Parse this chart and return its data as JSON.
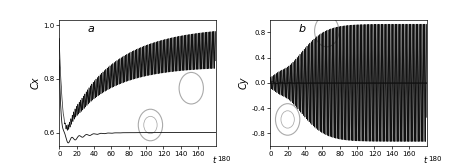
{
  "title_a": "a",
  "title_b": "b",
  "ylabel_a": "Cx",
  "ylabel_b": "Cy",
  "xlabel": "t",
  "xlim": [
    0,
    180
  ],
  "ylim_a": [
    0.55,
    1.02
  ],
  "ylim_b": [
    -1.0,
    1.0
  ],
  "xticks": [
    0,
    20,
    40,
    60,
    80,
    100,
    120,
    140,
    160
  ],
  "yticks_a": [
    0.6,
    0.8,
    1.0
  ],
  "yticks_b": [
    -0.8,
    -0.4,
    0.0,
    0.4,
    0.8
  ],
  "line_color": "#111111",
  "freq": 0.62,
  "n_points": 8000,
  "mean_a_base": 0.6,
  "mean_a_rise": 0.32,
  "mean_a_tau": 55,
  "amp_a_max": 0.075,
  "amp_a_tau": 70,
  "amp_b_max": 0.93,
  "amp_b_tau": 50,
  "amp_b_shift": 35
}
